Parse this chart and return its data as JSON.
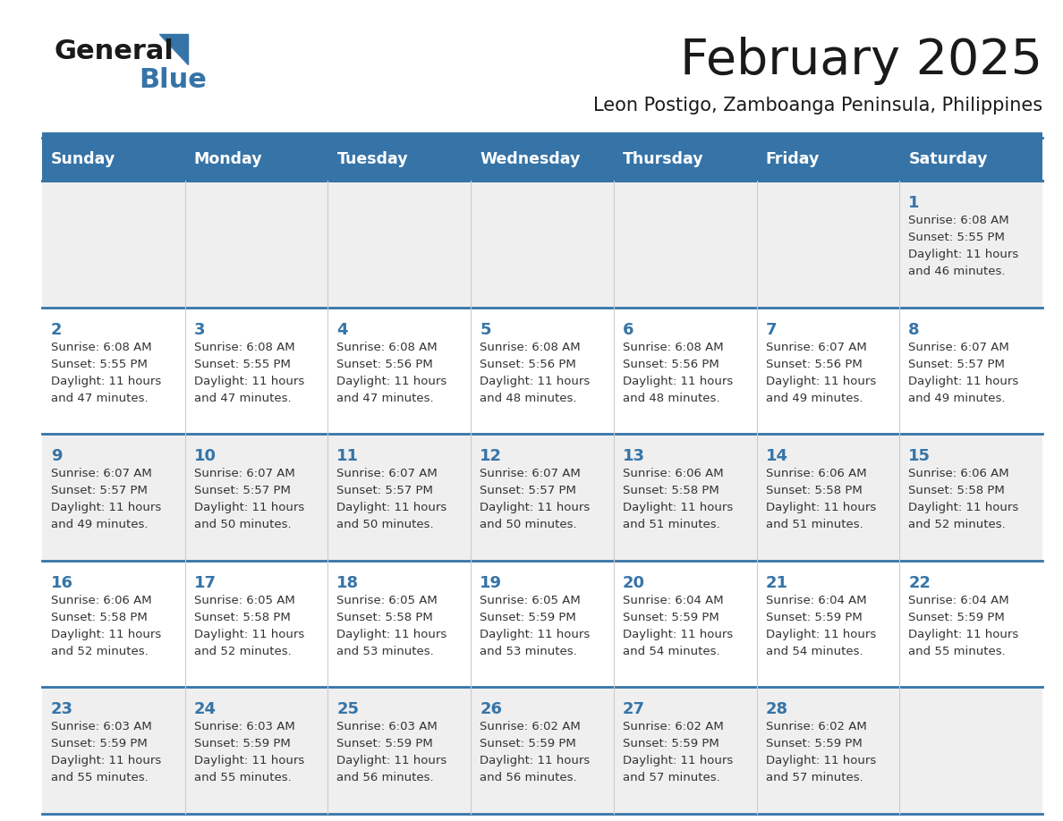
{
  "title": "February 2025",
  "subtitle": "Leon Postigo, Zamboanga Peninsula, Philippines",
  "header_bg_color": "#3674a8",
  "header_text_color": "#FFFFFF",
  "cell_bg_color_white": "#FFFFFF",
  "cell_bg_color_gray": "#EFEFEF",
  "border_color": "#3674a8",
  "day_number_color": "#3674a8",
  "text_color": "#333333",
  "days_of_week": [
    "Sunday",
    "Monday",
    "Tuesday",
    "Wednesday",
    "Thursday",
    "Friday",
    "Saturday"
  ],
  "calendar_data": [
    [
      null,
      null,
      null,
      null,
      null,
      null,
      {
        "day": 1,
        "sunrise": "6:08 AM",
        "sunset": "5:55 PM",
        "daylight_h": "11",
        "daylight_m": "46"
      }
    ],
    [
      {
        "day": 2,
        "sunrise": "6:08 AM",
        "sunset": "5:55 PM",
        "daylight_h": "11",
        "daylight_m": "47"
      },
      {
        "day": 3,
        "sunrise": "6:08 AM",
        "sunset": "5:55 PM",
        "daylight_h": "11",
        "daylight_m": "47"
      },
      {
        "day": 4,
        "sunrise": "6:08 AM",
        "sunset": "5:56 PM",
        "daylight_h": "11",
        "daylight_m": "47"
      },
      {
        "day": 5,
        "sunrise": "6:08 AM",
        "sunset": "5:56 PM",
        "daylight_h": "11",
        "daylight_m": "48"
      },
      {
        "day": 6,
        "sunrise": "6:08 AM",
        "sunset": "5:56 PM",
        "daylight_h": "11",
        "daylight_m": "48"
      },
      {
        "day": 7,
        "sunrise": "6:07 AM",
        "sunset": "5:56 PM",
        "daylight_h": "11",
        "daylight_m": "49"
      },
      {
        "day": 8,
        "sunrise": "6:07 AM",
        "sunset": "5:57 PM",
        "daylight_h": "11",
        "daylight_m": "49"
      }
    ],
    [
      {
        "day": 9,
        "sunrise": "6:07 AM",
        "sunset": "5:57 PM",
        "daylight_h": "11",
        "daylight_m": "49"
      },
      {
        "day": 10,
        "sunrise": "6:07 AM",
        "sunset": "5:57 PM",
        "daylight_h": "11",
        "daylight_m": "50"
      },
      {
        "day": 11,
        "sunrise": "6:07 AM",
        "sunset": "5:57 PM",
        "daylight_h": "11",
        "daylight_m": "50"
      },
      {
        "day": 12,
        "sunrise": "6:07 AM",
        "sunset": "5:57 PM",
        "daylight_h": "11",
        "daylight_m": "50"
      },
      {
        "day": 13,
        "sunrise": "6:06 AM",
        "sunset": "5:58 PM",
        "daylight_h": "11",
        "daylight_m": "51"
      },
      {
        "day": 14,
        "sunrise": "6:06 AM",
        "sunset": "5:58 PM",
        "daylight_h": "11",
        "daylight_m": "51"
      },
      {
        "day": 15,
        "sunrise": "6:06 AM",
        "sunset": "5:58 PM",
        "daylight_h": "11",
        "daylight_m": "52"
      }
    ],
    [
      {
        "day": 16,
        "sunrise": "6:06 AM",
        "sunset": "5:58 PM",
        "daylight_h": "11",
        "daylight_m": "52"
      },
      {
        "day": 17,
        "sunrise": "6:05 AM",
        "sunset": "5:58 PM",
        "daylight_h": "11",
        "daylight_m": "52"
      },
      {
        "day": 18,
        "sunrise": "6:05 AM",
        "sunset": "5:58 PM",
        "daylight_h": "11",
        "daylight_m": "53"
      },
      {
        "day": 19,
        "sunrise": "6:05 AM",
        "sunset": "5:59 PM",
        "daylight_h": "11",
        "daylight_m": "53"
      },
      {
        "day": 20,
        "sunrise": "6:04 AM",
        "sunset": "5:59 PM",
        "daylight_h": "11",
        "daylight_m": "54"
      },
      {
        "day": 21,
        "sunrise": "6:04 AM",
        "sunset": "5:59 PM",
        "daylight_h": "11",
        "daylight_m": "54"
      },
      {
        "day": 22,
        "sunrise": "6:04 AM",
        "sunset": "5:59 PM",
        "daylight_h": "11",
        "daylight_m": "55"
      }
    ],
    [
      {
        "day": 23,
        "sunrise": "6:03 AM",
        "sunset": "5:59 PM",
        "daylight_h": "11",
        "daylight_m": "55"
      },
      {
        "day": 24,
        "sunrise": "6:03 AM",
        "sunset": "5:59 PM",
        "daylight_h": "11",
        "daylight_m": "55"
      },
      {
        "day": 25,
        "sunrise": "6:03 AM",
        "sunset": "5:59 PM",
        "daylight_h": "11",
        "daylight_m": "56"
      },
      {
        "day": 26,
        "sunrise": "6:02 AM",
        "sunset": "5:59 PM",
        "daylight_h": "11",
        "daylight_m": "56"
      },
      {
        "day": 27,
        "sunrise": "6:02 AM",
        "sunset": "5:59 PM",
        "daylight_h": "11",
        "daylight_m": "57"
      },
      {
        "day": 28,
        "sunrise": "6:02 AM",
        "sunset": "5:59 PM",
        "daylight_h": "11",
        "daylight_m": "57"
      },
      null
    ]
  ]
}
